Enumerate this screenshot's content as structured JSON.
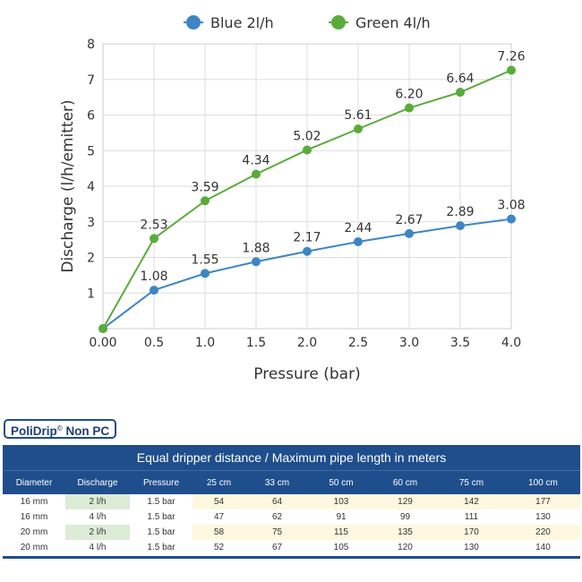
{
  "chart_data": {
    "type": "line",
    "x": [
      0.0,
      0.5,
      1.0,
      1.5,
      2.0,
      2.5,
      3.0,
      3.5,
      4.0
    ],
    "x_tick_labels": [
      "0.00",
      "0.5",
      "1.0",
      "1.5",
      "2.0",
      "2.5",
      "3.0",
      "3.5",
      "4.0"
    ],
    "xlabel": "Pressure (bar)",
    "ylabel": "Discharge (l/h/emitter)",
    "xlim": [
      0,
      4
    ],
    "ylim": [
      0,
      8
    ],
    "y_ticks": [
      1,
      2,
      3,
      4,
      5,
      6,
      7,
      8
    ],
    "grid": true,
    "legend_position": "top-center",
    "series": [
      {
        "name": "Blue 2l/h",
        "color": "#3d85c6",
        "values": [
          0,
          1.08,
          1.55,
          1.88,
          2.17,
          2.44,
          2.67,
          2.89,
          3.08
        ],
        "labels": [
          "",
          "1.08",
          "1.55",
          "1.88",
          "2.17",
          "2.44",
          "2.67",
          "2.89",
          "3.08"
        ]
      },
      {
        "name": "Green 4l/h",
        "color": "#5aac3a",
        "values": [
          0,
          2.53,
          3.59,
          4.34,
          5.02,
          5.61,
          6.2,
          6.64,
          7.26
        ],
        "labels": [
          "",
          "2.53",
          "3.59",
          "4.34",
          "5.02",
          "5.61",
          "6.20",
          "6.64",
          "7.26"
        ]
      }
    ]
  },
  "badge": {
    "name": "PoliDrip",
    "symbol": "©",
    "suffix": "Non PC"
  },
  "table": {
    "title": "Equal dripper distance / Maximum pipe length in meters",
    "headers": [
      "Diameter",
      "Discharge",
      "Pressure",
      "25 cm",
      "33 cm",
      "50 cm",
      "60 cm",
      "75 cm",
      "100 cm"
    ],
    "rows": [
      {
        "cells": [
          "16 mm",
          "2 l/h",
          "1.5 bar",
          "54",
          "64",
          "103",
          "129",
          "142",
          "177"
        ],
        "highlight_discharge": true
      },
      {
        "cells": [
          "16 mm",
          "4 l/h",
          "1.5 bar",
          "47",
          "62",
          "91",
          "99",
          "111",
          "130"
        ],
        "highlight_discharge": false
      },
      {
        "cells": [
          "20 mm",
          "2 l/h",
          "1.5 bar",
          "58",
          "75",
          "115",
          "135",
          "170",
          "220"
        ],
        "highlight_discharge": true
      },
      {
        "cells": [
          "20 mm",
          "4 l/h",
          "1.5 bar",
          "52",
          "67",
          "105",
          "120",
          "130",
          "140"
        ],
        "highlight_discharge": false
      }
    ],
    "colors": {
      "header": "#1f4e8c",
      "highlight": "#dcecd6",
      "cream": "#fdf8df"
    }
  }
}
